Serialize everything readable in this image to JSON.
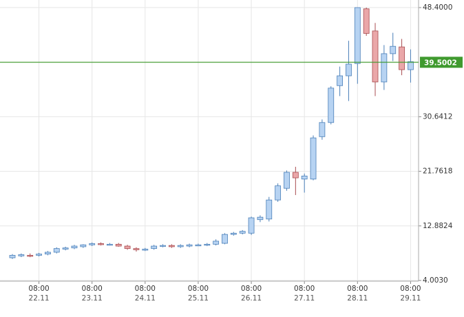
{
  "chart_data": {
    "type": "candlestick",
    "series": [
      {
        "up_color": "#b7d3f2",
        "up_stroke": "#4a7fb8",
        "down_color": "#eaa7a9",
        "down_stroke": "#a84a4e",
        "open": [
          7.7,
          8.0,
          8.1,
          8.1,
          8.3,
          8.6,
          9.1,
          9.3,
          9.5,
          9.8,
          10.0,
          9.9,
          9.9,
          9.6,
          9.2,
          9.0,
          9.2,
          9.6,
          9.7,
          9.5,
          9.6,
          9.8,
          9.8,
          9.9,
          10.05,
          11.5,
          11.7,
          11.7,
          13.9,
          14.0,
          17.1,
          19.0,
          21.6,
          20.5,
          20.5,
          27.4,
          29.7,
          35.7,
          37.3,
          39.3,
          48.2,
          44.6,
          36.3,
          40.9,
          42.0,
          38.3
        ],
        "high": [
          8.3,
          8.4,
          8.4,
          8.5,
          8.8,
          9.4,
          9.5,
          9.8,
          9.9,
          10.2,
          10.2,
          10.1,
          10.1,
          9.8,
          9.4,
          9.3,
          9.8,
          9.9,
          9.9,
          9.9,
          10.0,
          10.0,
          10.1,
          10.7,
          11.7,
          11.9,
          12.2,
          14.4,
          14.6,
          17.6,
          19.8,
          21.9,
          22.5,
          21.4,
          27.6,
          30.2,
          35.6,
          38.8,
          43.0,
          48.4,
          48.4,
          45.9,
          42.3,
          44.3,
          43.3,
          41.6
        ],
        "low": [
          7.5,
          7.8,
          7.8,
          7.9,
          8.1,
          8.4,
          8.9,
          9.1,
          9.3,
          9.6,
          9.7,
          9.7,
          9.5,
          9.0,
          8.7,
          8.8,
          9.0,
          9.4,
          9.3,
          9.3,
          9.4,
          9.6,
          9.6,
          9.7,
          9.9,
          11.3,
          11.5,
          11.4,
          13.5,
          13.6,
          16.8,
          18.6,
          17.9,
          18.3,
          20.3,
          26.9,
          29.4,
          34.0,
          33.2,
          36.0,
          43.8,
          34.0,
          35.0,
          39.7,
          37.4,
          36.2
        ],
        "close": [
          8.1,
          8.2,
          8.0,
          8.3,
          8.6,
          9.2,
          9.3,
          9.6,
          9.8,
          10.0,
          9.9,
          9.9,
          9.6,
          9.2,
          9.0,
          9.1,
          9.6,
          9.7,
          9.5,
          9.7,
          9.8,
          9.8,
          9.9,
          10.4,
          11.5,
          11.7,
          12.0,
          14.2,
          14.3,
          17.1,
          19.4,
          21.6,
          20.7,
          21.0,
          27.2,
          29.7,
          35.3,
          37.3,
          39.2,
          48.4,
          44.2,
          36.3,
          40.9,
          42.1,
          38.3,
          39.6
        ]
      }
    ],
    "xlim": [
      -1.4,
      45.9
    ],
    "xticks": [
      {
        "value": 3,
        "label": "08:00"
      },
      {
        "value": 9,
        "label": "08:00"
      },
      {
        "value": 15,
        "label": "08:00"
      },
      {
        "value": 21,
        "label": "08:00"
      },
      {
        "value": 27,
        "label": "08:00"
      },
      {
        "value": 33,
        "label": "08:00"
      },
      {
        "value": 39,
        "label": "08:00"
      },
      {
        "value": 45,
        "label": "08:00"
      }
    ],
    "xtick_dates": [
      "22.11",
      "23.11",
      "24.11",
      "25.11",
      "26.11",
      "27.11",
      "28.11",
      "29.11"
    ],
    "ylim": [
      4.003,
      48.4
    ],
    "yticks": [
      {
        "value": 4.003,
        "label": "4.0030"
      },
      12.8824,
      21.7618,
      30.6412,
      {
        "value": 48.4,
        "label": "48.4000"
      }
    ],
    "price_line": 39.5002,
    "price_line_color": "#3f9a2e",
    "grid": true
  }
}
